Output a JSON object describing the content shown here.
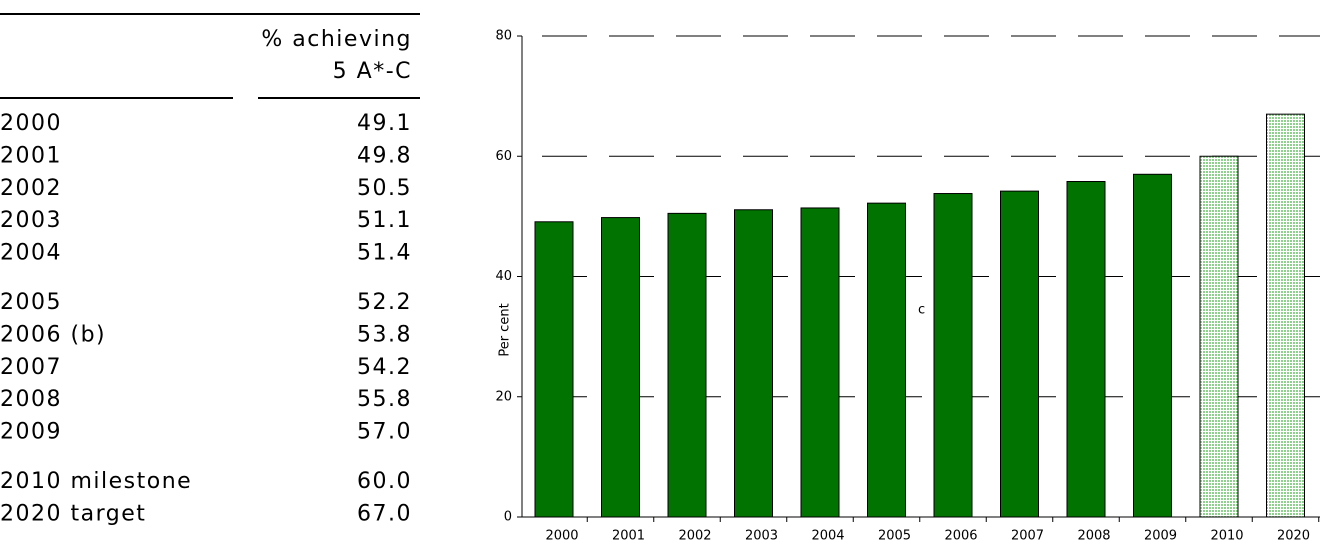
{
  "table": {
    "header": [
      "% achieving",
      "5 A*-C"
    ],
    "groups": [
      [
        [
          "2000",
          "49.1"
        ],
        [
          "2001",
          "49.8"
        ],
        [
          "2002",
          "50.5"
        ],
        [
          "2003",
          "51.1"
        ],
        [
          "2004",
          "51.4"
        ]
      ],
      [
        [
          "2005",
          "52.2"
        ],
        [
          "2006 (b)",
          "53.8"
        ],
        [
          "2007",
          "54.2"
        ],
        [
          "2008",
          "55.8"
        ],
        [
          "2009",
          "57.0"
        ]
      ],
      [
        [
          "2010 milestone",
          "60.0"
        ],
        [
          "2020 target",
          "67.0"
        ]
      ]
    ]
  },
  "chart_data": {
    "type": "bar",
    "y_label": "Per cent",
    "annotations": [
      "c"
    ],
    "categories": [
      "2000",
      "2001",
      "2002",
      "2003",
      "2004",
      "2005",
      "2006",
      "2007",
      "2008",
      "2009",
      "2010",
      "2020"
    ],
    "values": [
      49.1,
      49.8,
      50.5,
      51.1,
      51.4,
      52.2,
      53.8,
      54.2,
      55.8,
      57.0,
      60.0,
      67.0
    ],
    "bar_styles": [
      "solid",
      "solid",
      "solid",
      "solid",
      "solid",
      "solid",
      "solid",
      "solid",
      "solid",
      "solid",
      "hatched",
      "hatched"
    ],
    "color": "#007300",
    "hatch_color": "#8fd08f",
    "ylim": [
      0,
      80
    ],
    "yticks": [
      0,
      20,
      40,
      60,
      80
    ],
    "grid": true
  }
}
